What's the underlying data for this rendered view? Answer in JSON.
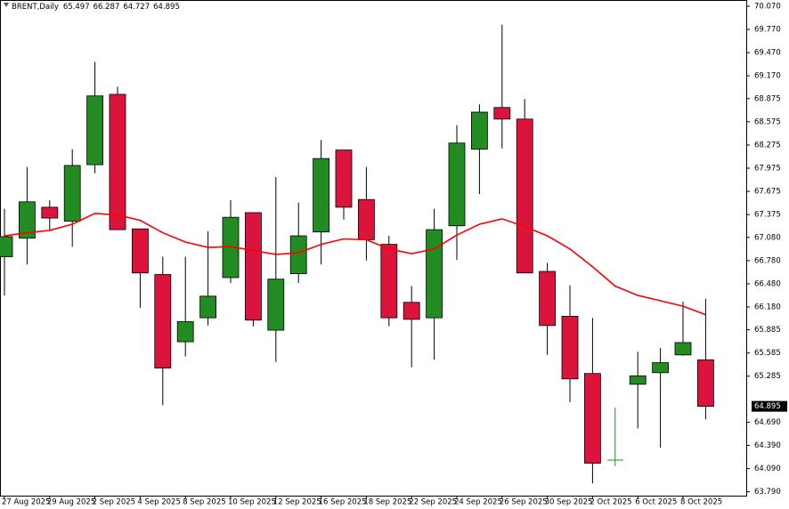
{
  "chart_data": {
    "type": "candlestick",
    "title": "BRENT,Daily",
    "categories": [
      "27 Aug 2025",
      null,
      "29 Aug 2025",
      null,
      "2 Sep 2025",
      null,
      "4 Sep 2025",
      null,
      "8 Sep 2025",
      null,
      "10 Sep 2025",
      null,
      "12 Sep 2025",
      null,
      "16 Sep 2025",
      null,
      "18 Sep 2025",
      null,
      "22 Sep 2025",
      null,
      "24 Sep 2025",
      null,
      "26 Sep 2025",
      null,
      "30 Sep 2025",
      null,
      "2 Oct 2025",
      null,
      "6 Oct 2025",
      null,
      "8 Oct 2025",
      null
    ],
    "open": [
      66.83,
      67.07,
      67.47,
      67.29,
      68.02,
      68.93,
      67.19,
      66.6,
      65.73,
      66.04,
      66.56,
      67.4,
      65.88,
      66.61,
      67.15,
      68.21,
      67.57,
      66.99,
      66.24,
      66.04,
      67.23,
      68.22,
      68.76,
      68.61,
      66.64,
      66.06,
      65.32,
      64.2,
      65.18,
      65.33,
      65.56,
      65.497
    ],
    "high": [
      67.45,
      67.99,
      67.56,
      68.22,
      69.35,
      69.03,
      67.19,
      66.83,
      66.83,
      67.16,
      67.56,
      67.4,
      67.86,
      67.53,
      68.34,
      68.21,
      67.99,
      67.1,
      66.45,
      67.45,
      68.53,
      68.8,
      69.83,
      68.87,
      66.75,
      66.46,
      66.04,
      64.88,
      65.6,
      65.65,
      66.25,
      66.287
    ],
    "low": [
      66.33,
      66.73,
      67.18,
      66.96,
      67.91,
      67.18,
      66.17,
      64.91,
      65.54,
      65.94,
      66.49,
      65.93,
      65.47,
      66.49,
      66.73,
      67.31,
      66.78,
      65.93,
      65.4,
      65.5,
      66.79,
      67.64,
      68.23,
      66.62,
      65.56,
      64.95,
      63.9,
      64.12,
      64.61,
      64.36,
      65.55,
      64.727
    ],
    "close": [
      67.09,
      67.54,
      67.33,
      68.01,
      68.91,
      67.18,
      66.62,
      65.39,
      65.99,
      66.32,
      67.34,
      66.01,
      66.54,
      67.1,
      68.1,
      67.47,
      67.05,
      66.04,
      66.02,
      67.18,
      68.3,
      68.7,
      68.61,
      66.62,
      65.94,
      65.25,
      64.16,
      64.2,
      65.29,
      65.46,
      65.72,
      64.895
    ],
    "up_color": "#228b22",
    "down_color": "#dc143c",
    "ma_values": [
      67.1,
      67.14,
      67.17,
      67.25,
      67.39,
      67.37,
      67.3,
      67.14,
      67.02,
      66.95,
      66.96,
      66.91,
      66.86,
      66.88,
      66.99,
      67.06,
      67.05,
      66.93,
      66.87,
      66.93,
      67.11,
      67.25,
      67.32,
      67.22,
      67.1,
      66.93,
      66.7,
      66.45,
      66.33,
      66.26,
      66.19,
      66.08
    ],
    "ma_color": "#ff0000",
    "ylim": [
      63.74,
      70.15
    ],
    "yticks": [
      {
        "value": 70.07,
        "label": "70.070"
      },
      {
        "value": 69.77,
        "label": "69.770"
      },
      {
        "value": 69.47,
        "label": "69.470"
      },
      {
        "value": 69.17,
        "label": "69.170"
      },
      {
        "value": 68.875,
        "label": "68.875"
      },
      {
        "value": 68.575,
        "label": "68.575"
      },
      {
        "value": 68.275,
        "label": "68.275"
      },
      {
        "value": 67.975,
        "label": "67.975"
      },
      {
        "value": 67.675,
        "label": "67.675"
      },
      {
        "value": 67.375,
        "label": "67.375"
      },
      {
        "value": 67.08,
        "label": "67.080"
      },
      {
        "value": 66.78,
        "label": "66.780"
      },
      {
        "value": 66.48,
        "label": "66.480"
      },
      {
        "value": 66.18,
        "label": "66.180"
      },
      {
        "value": 65.885,
        "label": "65.885"
      },
      {
        "value": 65.585,
        "label": "65.585"
      },
      {
        "value": 65.285,
        "label": "65.285"
      },
      {
        "value": 64.69,
        "label": "64.690"
      },
      {
        "value": 64.39,
        "label": "64.390"
      },
      {
        "value": 64.09,
        "label": "64.090"
      },
      {
        "value": 63.79,
        "label": "63.790"
      }
    ]
  }
}
